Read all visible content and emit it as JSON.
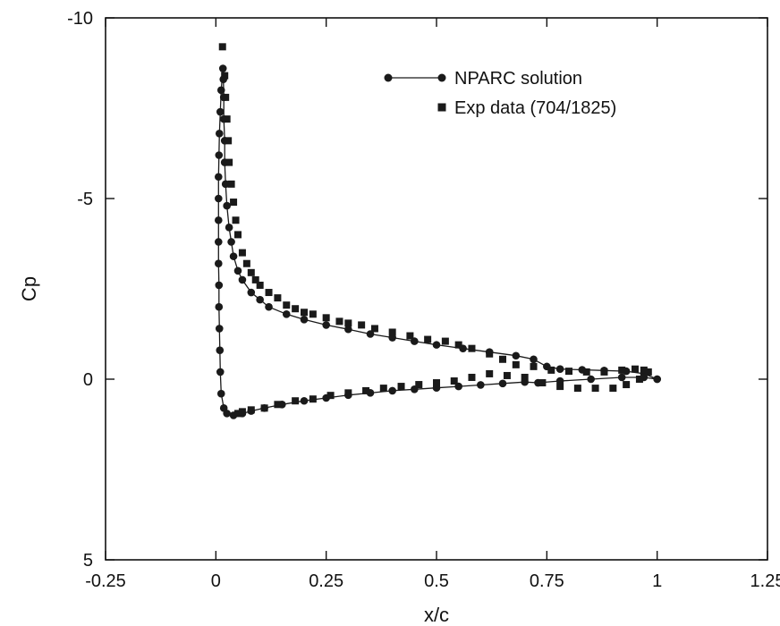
{
  "chart_data": {
    "type": "scatter",
    "xlabel": "x/c",
    "ylabel": "Cp",
    "xlim": [
      -0.25,
      1.25
    ],
    "ylim": [
      5,
      -10
    ],
    "y_inverted": true,
    "xticks": [
      "-0.25",
      "0",
      "0.25",
      "0.5",
      "0.75",
      "1",
      "1.25"
    ],
    "yticks": [
      "-10",
      "-5",
      "0",
      "5"
    ],
    "grid": false,
    "legend_position": "top-right",
    "colors": {
      "series": "#1a1a1a",
      "axes": "#111111"
    },
    "series": [
      {
        "name": "NPARC solution",
        "marker": "circle",
        "line": true,
        "points": [
          [
            1.0,
            0.0
          ],
          [
            0.97,
            -0.15
          ],
          [
            0.93,
            -0.22
          ],
          [
            0.88,
            -0.24
          ],
          [
            0.83,
            -0.26
          ],
          [
            0.78,
            -0.28
          ],
          [
            0.75,
            -0.35
          ],
          [
            0.72,
            -0.55
          ],
          [
            0.68,
            -0.65
          ],
          [
            0.62,
            -0.75
          ],
          [
            0.56,
            -0.85
          ],
          [
            0.5,
            -0.95
          ],
          [
            0.45,
            -1.05
          ],
          [
            0.4,
            -1.15
          ],
          [
            0.35,
            -1.25
          ],
          [
            0.3,
            -1.38
          ],
          [
            0.25,
            -1.5
          ],
          [
            0.2,
            -1.65
          ],
          [
            0.16,
            -1.8
          ],
          [
            0.12,
            -2.0
          ],
          [
            0.1,
            -2.2
          ],
          [
            0.08,
            -2.4
          ],
          [
            0.06,
            -2.75
          ],
          [
            0.05,
            -3.0
          ],
          [
            0.04,
            -3.4
          ],
          [
            0.035,
            -3.8
          ],
          [
            0.03,
            -4.2
          ],
          [
            0.025,
            -4.8
          ],
          [
            0.022,
            -5.4
          ],
          [
            0.02,
            -6.0
          ],
          [
            0.02,
            -6.6
          ],
          [
            0.018,
            -7.2
          ],
          [
            0.018,
            -7.8
          ],
          [
            0.017,
            -8.3
          ],
          [
            0.016,
            -8.6
          ],
          [
            0.012,
            -8.0
          ],
          [
            0.01,
            -7.4
          ],
          [
            0.008,
            -6.8
          ],
          [
            0.007,
            -6.2
          ],
          [
            0.006,
            -5.6
          ],
          [
            0.006,
            -5.0
          ],
          [
            0.006,
            -4.4
          ],
          [
            0.006,
            -3.8
          ],
          [
            0.006,
            -3.2
          ],
          [
            0.007,
            -2.6
          ],
          [
            0.007,
            -2.0
          ],
          [
            0.008,
            -1.4
          ],
          [
            0.009,
            -0.8
          ],
          [
            0.01,
            -0.2
          ],
          [
            0.012,
            0.4
          ],
          [
            0.018,
            0.8
          ],
          [
            0.025,
            0.95
          ],
          [
            0.04,
            1.0
          ],
          [
            0.06,
            0.95
          ],
          [
            0.08,
            0.88
          ],
          [
            0.11,
            0.8
          ],
          [
            0.15,
            0.7
          ],
          [
            0.2,
            0.6
          ],
          [
            0.25,
            0.52
          ],
          [
            0.3,
            0.44
          ],
          [
            0.35,
            0.38
          ],
          [
            0.4,
            0.32
          ],
          [
            0.45,
            0.28
          ],
          [
            0.5,
            0.24
          ],
          [
            0.55,
            0.2
          ],
          [
            0.6,
            0.16
          ],
          [
            0.65,
            0.12
          ],
          [
            0.7,
            0.08
          ],
          [
            0.73,
            0.1
          ],
          [
            0.78,
            0.05
          ],
          [
            0.85,
            0.0
          ],
          [
            0.92,
            -0.05
          ],
          [
            0.97,
            -0.05
          ],
          [
            1.0,
            0.0
          ]
        ]
      },
      {
        "name": "Exp data (704/1825)",
        "marker": "square",
        "line": false,
        "points": [
          [
            0.015,
            -9.2
          ],
          [
            0.02,
            -8.4
          ],
          [
            0.022,
            -7.8
          ],
          [
            0.025,
            -7.2
          ],
          [
            0.028,
            -6.6
          ],
          [
            0.03,
            -6.0
          ],
          [
            0.035,
            -5.4
          ],
          [
            0.04,
            -4.9
          ],
          [
            0.045,
            -4.4
          ],
          [
            0.05,
            -4.0
          ],
          [
            0.06,
            -3.5
          ],
          [
            0.07,
            -3.2
          ],
          [
            0.08,
            -2.95
          ],
          [
            0.09,
            -2.75
          ],
          [
            0.1,
            -2.6
          ],
          [
            0.12,
            -2.4
          ],
          [
            0.14,
            -2.25
          ],
          [
            0.16,
            -2.05
          ],
          [
            0.18,
            -1.95
          ],
          [
            0.2,
            -1.85
          ],
          [
            0.22,
            -1.8
          ],
          [
            0.25,
            -1.7
          ],
          [
            0.28,
            -1.6
          ],
          [
            0.3,
            -1.55
          ],
          [
            0.33,
            -1.5
          ],
          [
            0.36,
            -1.4
          ],
          [
            0.4,
            -1.3
          ],
          [
            0.44,
            -1.2
          ],
          [
            0.48,
            -1.1
          ],
          [
            0.52,
            -1.05
          ],
          [
            0.55,
            -0.95
          ],
          [
            0.58,
            -0.85
          ],
          [
            0.62,
            -0.7
          ],
          [
            0.65,
            -0.55
          ],
          [
            0.68,
            -0.4
          ],
          [
            0.72,
            -0.35
          ],
          [
            0.76,
            -0.25
          ],
          [
            0.8,
            -0.22
          ],
          [
            0.84,
            -0.2
          ],
          [
            0.88,
            -0.2
          ],
          [
            0.92,
            -0.25
          ],
          [
            0.95,
            -0.28
          ],
          [
            0.97,
            -0.25
          ],
          [
            0.98,
            -0.2
          ],
          [
            0.96,
            0.0
          ],
          [
            0.93,
            0.15
          ],
          [
            0.9,
            0.25
          ],
          [
            0.86,
            0.25
          ],
          [
            0.82,
            0.25
          ],
          [
            0.78,
            0.2
          ],
          [
            0.74,
            0.1
          ],
          [
            0.7,
            -0.05
          ],
          [
            0.66,
            -0.1
          ],
          [
            0.62,
            -0.15
          ],
          [
            0.58,
            -0.05
          ],
          [
            0.54,
            0.05
          ],
          [
            0.5,
            0.1
          ],
          [
            0.46,
            0.15
          ],
          [
            0.42,
            0.2
          ],
          [
            0.38,
            0.25
          ],
          [
            0.34,
            0.32
          ],
          [
            0.3,
            0.38
          ],
          [
            0.26,
            0.45
          ],
          [
            0.22,
            0.55
          ],
          [
            0.18,
            0.6
          ],
          [
            0.14,
            0.7
          ],
          [
            0.11,
            0.8
          ],
          [
            0.08,
            0.85
          ],
          [
            0.06,
            0.9
          ],
          [
            0.05,
            0.95
          ]
        ]
      }
    ]
  }
}
